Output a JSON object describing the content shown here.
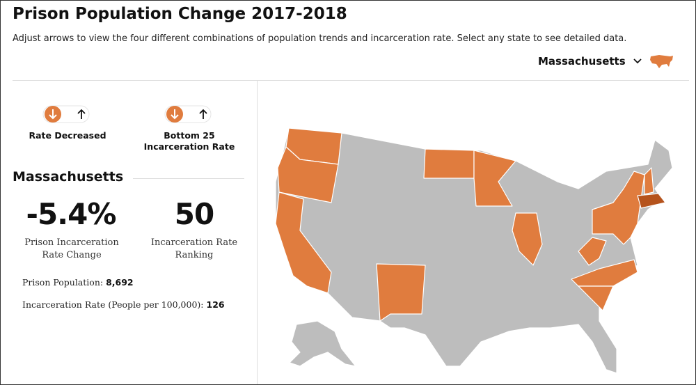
{
  "header": {
    "title": "Prison Population Change 2017-2018",
    "subtitle": "Adjust arrows to view the four different combinations of population trends and incarceration rate. Select any state to see detailed data."
  },
  "state_selector": {
    "selected": "Massachusetts"
  },
  "filters": [
    {
      "label": "Rate Decreased"
    },
    {
      "label": "Bottom 25 Incarceration Rate"
    }
  ],
  "details": {
    "state": "Massachusetts",
    "stats": [
      {
        "value": "-5.4%",
        "label": "Prison Incarceration Rate Change"
      },
      {
        "value": "50",
        "label": "Incarceration Rate Ranking"
      }
    ],
    "facts": [
      {
        "label": "Prison Population:",
        "value": "8,692"
      },
      {
        "label": "Incarceration Rate (People per 100,000):",
        "value": "126"
      }
    ]
  }
}
